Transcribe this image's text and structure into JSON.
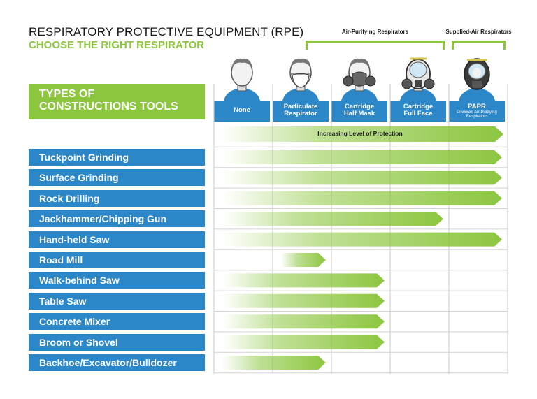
{
  "title": "RESPIRATORY PROTECTIVE EQUIPMENT (RPE)",
  "subtitle": "CHOOSE THE RIGHT RESPIRATOR",
  "groups": {
    "air_purifying": "Air-Purifying Respirators",
    "supplied_air": "Supplied-Air Respirators"
  },
  "types_header": {
    "line1": "TYPES OF",
    "line2": "CONSTRUCTIONS TOOLS"
  },
  "respirators": [
    {
      "line1": "None",
      "line2": "",
      "sub": ""
    },
    {
      "line1": "Particulate",
      "line2": "Respirator",
      "sub": ""
    },
    {
      "line1": "Cartridge",
      "line2": "Half Mask",
      "sub": ""
    },
    {
      "line1": "Cartridge",
      "line2": "Full Face",
      "sub": ""
    },
    {
      "line1": "PAPR",
      "line2": "",
      "sub": "Powered Air-Purifying Respirators"
    }
  ],
  "protection_label": "Increasing Level of Protection",
  "colors": {
    "green": "#8cc63f",
    "blue": "#2b87c8"
  },
  "tools": [
    {
      "name": "Tuckpoint Grinding",
      "from": 0,
      "to": 5
    },
    {
      "name": "Surface Grinding",
      "from": 0,
      "to": 5
    },
    {
      "name": "Rock Drilling",
      "from": 0,
      "to": 5
    },
    {
      "name": "Jackhammer/Chipping Gun",
      "from": 0,
      "to": 4
    },
    {
      "name": "Hand-held Saw",
      "from": 0,
      "to": 5
    },
    {
      "name": "Road Mill",
      "from": 1,
      "to": 2
    },
    {
      "name": "Walk-behind Saw",
      "from": 0,
      "to": 3
    },
    {
      "name": "Table Saw",
      "from": 0,
      "to": 3
    },
    {
      "name": "Concrete Mixer",
      "from": 0,
      "to": 3
    },
    {
      "name": "Broom or Shovel",
      "from": 0,
      "to": 3
    },
    {
      "name": "Backhoe/Excavator/Bulldozer",
      "from": 0,
      "to": 2
    }
  ]
}
